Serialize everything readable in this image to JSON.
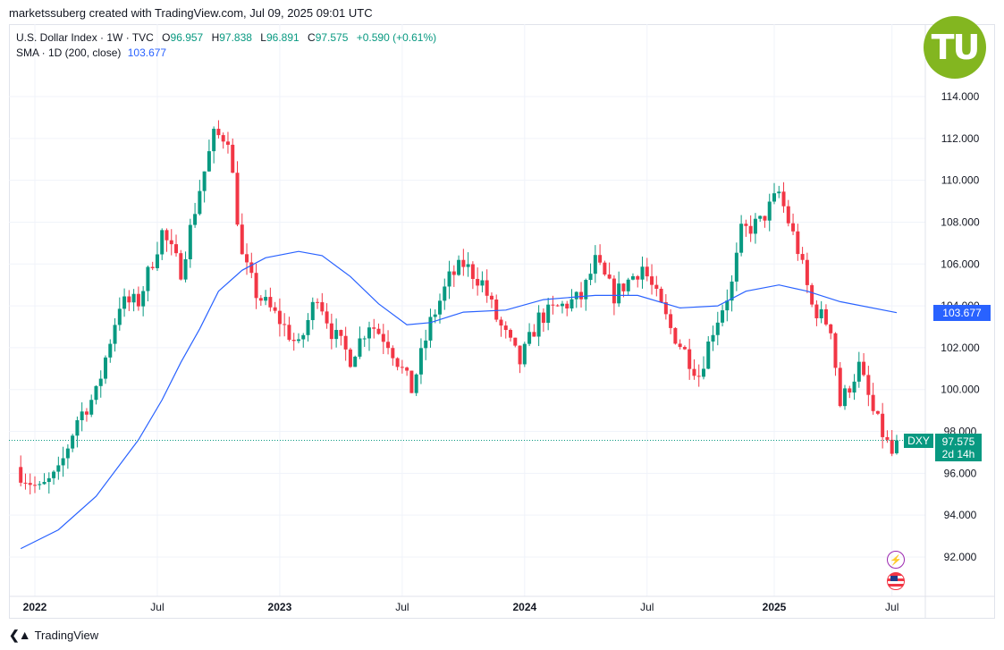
{
  "header": {
    "credit": "marketssuberg created with TradingView.com, Jul 09, 2025 09:01 UTC"
  },
  "legend": {
    "symbol": "U.S. Dollar Index · 1W · TVC",
    "o_label": "O",
    "o_value": "96.957",
    "h_label": "H",
    "h_value": "97.838",
    "l_label": "L",
    "l_value": "96.891",
    "c_label": "C",
    "c_value": "97.575",
    "change": "+0.590 (+0.61%)",
    "sma_label": "SMA · 1D (200, close)",
    "sma_value": "103.677"
  },
  "price_axis": {
    "ticks": [
      "114.000",
      "112.000",
      "110.000",
      "108.000",
      "106.000",
      "104.000",
      "102.000",
      "100.000",
      "98.000",
      "96.000",
      "94.000",
      "92.000"
    ]
  },
  "time_axis": {
    "ticks": [
      "2022",
      "Jul",
      "2023",
      "Jul",
      "2024",
      "Jul",
      "2025",
      "Jul"
    ]
  },
  "badges": {
    "sma_price": "103.677",
    "symbol": "DXY",
    "last_price": "97.575",
    "countdown": "2d 14h"
  },
  "logo": {
    "text": "TU"
  },
  "footer": {
    "brand": "TradingView"
  },
  "colors": {
    "up": "#089981",
    "down": "#f23645",
    "sma": "#2962ff",
    "logo": "#83b620"
  },
  "icons": [
    "lightning-icon",
    "us-flag-icon"
  ],
  "chart_data": {
    "type": "candlestick",
    "interval": "1W",
    "x_range": [
      "2021-12-13",
      "2025-07-07"
    ],
    "y_range": [
      90,
      116
    ],
    "y_ticks": [
      92,
      94,
      96,
      98,
      100,
      102,
      104,
      106,
      108,
      110,
      112,
      114
    ],
    "grid": true,
    "last_price": 97.575,
    "last_bar": {
      "date": "2025-07-07",
      "open": 96.957,
      "high": 97.838,
      "low": 96.891,
      "close": 97.575
    },
    "close_anchors": [
      [
        "2021-12-13",
        96.0
      ],
      [
        "2022-01-10",
        95.2
      ],
      [
        "2022-02-07",
        96.0
      ],
      [
        "2022-03-07",
        98.6
      ],
      [
        "2022-04-04",
        99.8
      ],
      [
        "2022-05-09",
        104.1
      ],
      [
        "2022-06-06",
        104.2
      ],
      [
        "2022-07-11",
        107.5
      ],
      [
        "2022-08-08",
        105.7
      ],
      [
        "2022-09-05",
        109.6
      ],
      [
        "2022-09-26",
        112.1
      ],
      [
        "2022-10-17",
        112.1
      ],
      [
        "2022-11-07",
        106.3
      ],
      [
        "2022-11-28",
        104.6
      ],
      [
        "2023-01-02",
        103.3
      ],
      [
        "2023-01-30",
        102.0
      ],
      [
        "2023-02-27",
        104.6
      ],
      [
        "2023-03-20",
        102.8
      ],
      [
        "2023-04-17",
        101.5
      ],
      [
        "2023-05-15",
        103.2
      ],
      [
        "2023-06-12",
        102.3
      ],
      [
        "2023-07-17",
        100.0
      ],
      [
        "2023-08-14",
        103.2
      ],
      [
        "2023-09-11",
        105.3
      ],
      [
        "2023-10-02",
        106.0
      ],
      [
        "2023-10-30",
        105.1
      ],
      [
        "2023-11-20",
        103.4
      ],
      [
        "2023-12-25",
        101.3
      ],
      [
        "2024-01-22",
        103.4
      ],
      [
        "2024-02-19",
        103.9
      ],
      [
        "2024-03-25",
        104.4
      ],
      [
        "2024-04-15",
        106.1
      ],
      [
        "2024-05-13",
        104.5
      ],
      [
        "2024-06-24",
        105.9
      ],
      [
        "2024-07-15",
        104.4
      ],
      [
        "2024-08-05",
        102.9
      ],
      [
        "2024-09-16",
        100.7
      ],
      [
        "2024-10-07",
        102.9
      ],
      [
        "2024-11-04",
        105.0
      ],
      [
        "2024-11-18",
        107.5
      ],
      [
        "2024-12-16",
        108.0
      ],
      [
        "2025-01-13",
        109.4
      ],
      [
        "2025-02-10",
        106.7
      ],
      [
        "2025-03-03",
        104.0
      ],
      [
        "2025-03-31",
        103.0
      ],
      [
        "2025-04-14",
        99.3
      ],
      [
        "2025-05-12",
        101.1
      ],
      [
        "2025-06-02",
        98.9
      ],
      [
        "2025-06-30",
        96.9
      ],
      [
        "2025-07-07",
        97.575
      ]
    ],
    "sma": {
      "name": "SMA · 1D (200, close)",
      "last_value": 103.677,
      "points": [
        [
          "2021-12-13",
          92.4
        ],
        [
          "2022-02-07",
          93.3
        ],
        [
          "2022-04-04",
          94.9
        ],
        [
          "2022-06-06",
          97.6
        ],
        [
          "2022-07-11",
          99.5
        ],
        [
          "2022-08-08",
          101.3
        ],
        [
          "2022-09-05",
          102.9
        ],
        [
          "2022-10-03",
          104.7
        ],
        [
          "2022-11-07",
          105.7
        ],
        [
          "2022-12-12",
          106.3
        ],
        [
          "2023-01-30",
          106.6
        ],
        [
          "2023-03-06",
          106.4
        ],
        [
          "2023-04-17",
          105.4
        ],
        [
          "2023-05-29",
          104.1
        ],
        [
          "2023-07-10",
          103.1
        ],
        [
          "2023-08-14",
          103.2
        ],
        [
          "2023-10-02",
          103.7
        ],
        [
          "2023-12-04",
          103.8
        ],
        [
          "2024-01-29",
          104.3
        ],
        [
          "2024-04-15",
          104.5
        ],
        [
          "2024-06-17",
          104.5
        ],
        [
          "2024-08-19",
          103.9
        ],
        [
          "2024-10-14",
          104.0
        ],
        [
          "2024-11-25",
          104.7
        ],
        [
          "2025-01-13",
          105.0
        ],
        [
          "2025-02-24",
          104.7
        ],
        [
          "2025-04-14",
          104.2
        ],
        [
          "2025-07-07",
          103.677
        ]
      ]
    }
  }
}
